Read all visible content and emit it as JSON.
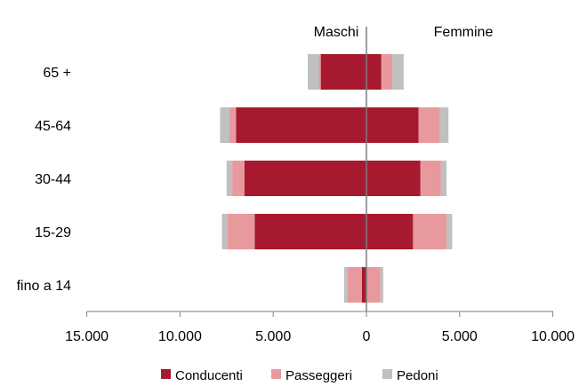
{
  "chart_data": {
    "type": "bar",
    "orientation": "horizontal",
    "stacked": true,
    "diverging": true,
    "categories": [
      "65 +",
      "45-64",
      "30-44",
      "15-29",
      "fino a 14"
    ],
    "groups": [
      "Maschi",
      "Femmine"
    ],
    "series": [
      {
        "name": "Conducenti",
        "color": "#a6192e",
        "maschi": [
          2450,
          7000,
          6550,
          6000,
          250
        ],
        "femmine": [
          800,
          2800,
          2900,
          2500,
          0
        ]
      },
      {
        "name": "Passeggeri",
        "color": "#e8999d",
        "maschi": [
          100,
          350,
          650,
          1450,
          750
        ],
        "femmine": [
          600,
          1150,
          1100,
          1800,
          750
        ]
      },
      {
        "name": "Pedoni",
        "color": "#c0c0c0",
        "maschi": [
          600,
          500,
          300,
          300,
          200
        ],
        "femmine": [
          600,
          450,
          300,
          300,
          150
        ]
      }
    ],
    "xlim": [
      -15000,
      10000
    ],
    "xticks": [
      -15000,
      -10000,
      -5000,
      0,
      5000,
      10000
    ],
    "xtick_labels": [
      "15.000",
      "10.000",
      "5.000",
      "0",
      "5.000",
      "10.000"
    ],
    "legend_position": "bottom",
    "grid": false
  }
}
